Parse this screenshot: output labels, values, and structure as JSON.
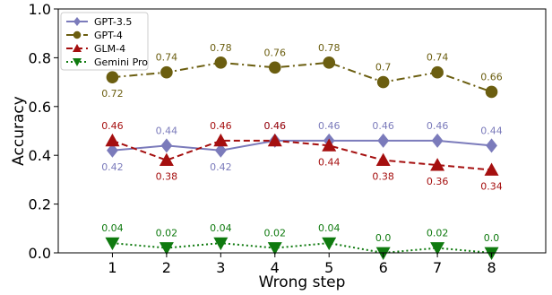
{
  "chart_data": {
    "type": "line",
    "xlabel": "Wrong step",
    "ylabel": "Accuracy",
    "x": [
      1,
      2,
      3,
      4,
      5,
      6,
      7,
      8
    ],
    "xticks": [
      "1",
      "2",
      "3",
      "4",
      "5",
      "6",
      "7",
      "8"
    ],
    "yticks": [
      "0.0",
      "0.2",
      "0.4",
      "0.6",
      "0.8",
      "1.0"
    ],
    "ylim": [
      0,
      1
    ],
    "xlim": [
      0,
      9
    ],
    "grid": false,
    "legend_position": "top-left",
    "series": [
      {
        "name": "GPT-3.5",
        "values": [
          0.42,
          0.44,
          0.42,
          0.46,
          0.46,
          0.46,
          0.46,
          0.44
        ],
        "labels": [
          "0.42",
          "0.44",
          "0.42",
          "0.46",
          "0.46",
          "0.46",
          "0.46",
          "0.44"
        ],
        "color": "#7b7bbb",
        "marker": "diamond",
        "linestyle": "solid",
        "label_side": [
          "below",
          "above",
          "below",
          "above",
          "above",
          "above",
          "above",
          "above"
        ]
      },
      {
        "name": "GPT-4",
        "values": [
          0.72,
          0.74,
          0.78,
          0.76,
          0.78,
          0.7,
          0.74,
          0.66
        ],
        "labels": [
          "0.72",
          "0.74",
          "0.78",
          "0.76",
          "0.78",
          "0.7",
          "0.74",
          "0.66"
        ],
        "color": "#6b5e10",
        "marker": "circle",
        "linestyle": "dashdot",
        "label_side": [
          "below",
          "above",
          "above",
          "above",
          "above",
          "above",
          "above",
          "above"
        ]
      },
      {
        "name": "GLM-4",
        "values": [
          0.46,
          0.38,
          0.46,
          0.46,
          0.44,
          0.38,
          0.36,
          0.34
        ],
        "labels": [
          "0.46",
          "0.38",
          "0.46",
          "0.46",
          "0.44",
          "0.38",
          "0.36",
          "0.34"
        ],
        "color": "#a50f0f",
        "marker": "triangle-up",
        "linestyle": "dashed",
        "label_side": [
          "above",
          "below",
          "above",
          "above",
          "below",
          "below",
          "below",
          "below"
        ]
      },
      {
        "name": "Gemini Pro",
        "values": [
          0.04,
          0.02,
          0.04,
          0.02,
          0.04,
          0.0,
          0.02,
          0.0
        ],
        "labels": [
          "0.04",
          "0.02",
          "0.04",
          "0.02",
          "0.04",
          "0.0",
          "0.02",
          "0.0"
        ],
        "color": "#0f7a0f",
        "marker": "triangle-down",
        "linestyle": "dotted",
        "label_side": [
          "above",
          "above",
          "above",
          "above",
          "above",
          "above",
          "above",
          "above"
        ]
      }
    ]
  }
}
